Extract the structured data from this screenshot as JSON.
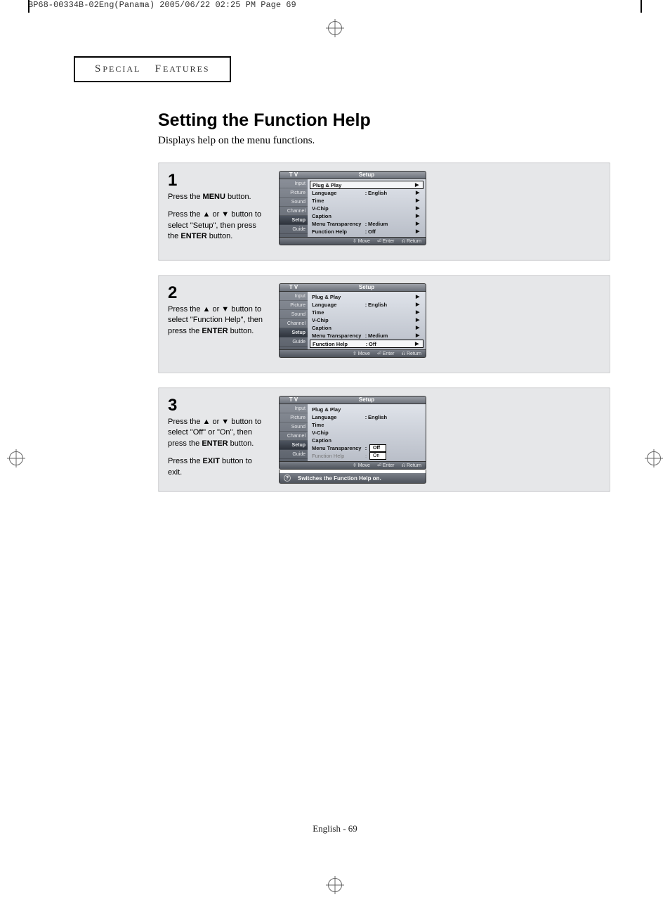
{
  "meta": {
    "crop_header": "BP68-00334B-02Eng(Panama)  2005/06/22  02:25 PM  Page 69"
  },
  "section_header": {
    "word1": "S",
    "word1rest": "PECIAL",
    "word2": "F",
    "word2rest": "EATURES"
  },
  "title": "Setting the Function Help",
  "subtitle": "Displays help on the menu functions.",
  "footer": "English - 69",
  "steps": [
    {
      "num": "1",
      "lines": [
        "Press the <b>MENU</b> button.",
        "",
        "Press the  ▲ or ▼  button to select \"Setup\", then press the <b>ENTER</b> button."
      ],
      "osd": {
        "tv": "T V",
        "title": "Setup",
        "tabs": [
          "Input",
          "Picture",
          "Sound",
          "Channel",
          "Setup",
          "Guide"
        ],
        "selectedTab": 4,
        "rows": [
          {
            "label": "Plug & Play",
            "value": "",
            "arrow": "▶",
            "hl": true
          },
          {
            "label": "Language",
            "sep": ":",
            "value": "English",
            "arrow": "▶"
          },
          {
            "label": "Time",
            "value": "",
            "arrow": "▶"
          },
          {
            "label": "V-Chip",
            "value": "",
            "arrow": "▶"
          },
          {
            "label": "Caption",
            "value": "",
            "arrow": "▶"
          },
          {
            "label": "Menu Transparency",
            "sep": ":",
            "value": "Medium",
            "arrow": "▶"
          },
          {
            "label": "Function Help",
            "sep": ":",
            "value": "Off",
            "arrow": "▶"
          }
        ],
        "footer": [
          "Move",
          "Enter",
          "Return"
        ]
      }
    },
    {
      "num": "2",
      "lines": [
        "Press the ▲ or ▼ button to select \"Function Help\", then press the <b>ENTER</b> button."
      ],
      "osd": {
        "tv": "T V",
        "title": "Setup",
        "tabs": [
          "Input",
          "Picture",
          "Sound",
          "Channel",
          "Setup",
          "Guide"
        ],
        "selectedTab": 4,
        "rows": [
          {
            "label": "Plug & Play",
            "value": "",
            "arrow": "▶"
          },
          {
            "label": "Language",
            "sep": ":",
            "value": "English",
            "arrow": "▶"
          },
          {
            "label": "Time",
            "value": "",
            "arrow": "▶"
          },
          {
            "label": "V-Chip",
            "value": "",
            "arrow": "▶"
          },
          {
            "label": "Caption",
            "value": "",
            "arrow": "▶"
          },
          {
            "label": "Menu Transparency",
            "sep": ":",
            "value": "Medium",
            "arrow": "▶"
          },
          {
            "label": "Function Help",
            "sep": ":",
            "value": "Off",
            "arrow": "▶",
            "hl": true
          }
        ],
        "footer": [
          "Move",
          "Enter",
          "Return"
        ]
      }
    },
    {
      "num": "3",
      "lines": [
        "Press the ▲ or ▼ button to select \"Off\" or \"On\", then press the <b>ENTER</b> button.",
        "",
        "Press the <b>EXIT</b> button to exit."
      ],
      "osd": {
        "tv": "T V",
        "title": "Setup",
        "tabs": [
          "Input",
          "Picture",
          "Sound",
          "Channel",
          "Setup",
          "Guide"
        ],
        "selectedTab": 4,
        "rows": [
          {
            "label": "Plug & Play",
            "value": ""
          },
          {
            "label": "Language",
            "sep": ":",
            "value": "English"
          },
          {
            "label": "Time",
            "value": ""
          },
          {
            "label": "V-Chip",
            "value": ""
          },
          {
            "label": "Caption",
            "value": ""
          },
          {
            "label": "Menu Transparency",
            "sep": ":",
            "popup": "Off",
            "popupSel": true
          },
          {
            "label": "Function Help",
            "sep": ":",
            "popup": "On",
            "dim": true
          }
        ],
        "footer": [
          "Move",
          "Enter",
          "Return"
        ],
        "helpbar": "Switches the Function Help on."
      }
    }
  ]
}
